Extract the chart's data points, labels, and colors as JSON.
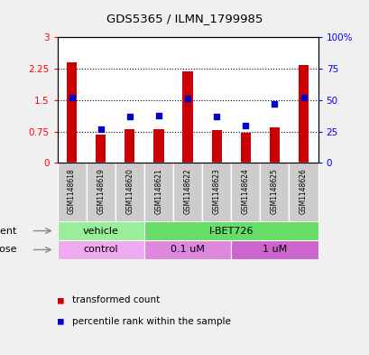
{
  "title": "GDS5365 / ILMN_1799985",
  "samples": [
    "GSM1148618",
    "GSM1148619",
    "GSM1148620",
    "GSM1148621",
    "GSM1148622",
    "GSM1148623",
    "GSM1148624",
    "GSM1148625",
    "GSM1148626"
  ],
  "red_values": [
    2.4,
    0.68,
    0.8,
    0.8,
    2.18,
    0.78,
    0.73,
    0.85,
    2.33
  ],
  "blue_values": [
    52,
    27,
    37,
    38,
    51,
    37,
    30,
    47,
    52
  ],
  "ylim_left": [
    0,
    3
  ],
  "ylim_right": [
    0,
    100
  ],
  "yticks_left": [
    0,
    0.75,
    1.5,
    2.25,
    3
  ],
  "yticks_right": [
    0,
    25,
    50,
    75,
    100
  ],
  "ytick_labels_left": [
    "0",
    "0.75",
    "1.5",
    "2.25",
    "3"
  ],
  "ytick_labels_right": [
    "0",
    "25",
    "50",
    "75",
    "100%"
  ],
  "hlines": [
    0.75,
    1.5,
    2.25
  ],
  "bar_color": "#cc0000",
  "dot_color": "#0000cc",
  "agent_labels": [
    {
      "text": "vehicle",
      "start": 0,
      "end": 3,
      "color": "#99ee99"
    },
    {
      "text": "I-BET726",
      "start": 3,
      "end": 9,
      "color": "#66dd66"
    }
  ],
  "dose_labels": [
    {
      "text": "control",
      "start": 0,
      "end": 3,
      "color": "#eeaaee"
    },
    {
      "text": "0.1 uM",
      "start": 3,
      "end": 6,
      "color": "#dd88dd"
    },
    {
      "text": "1 uM",
      "start": 6,
      "end": 9,
      "color": "#cc66cc"
    }
  ],
  "legend_red": "transformed count",
  "legend_blue": "percentile rank within the sample",
  "xlabel_agent": "agent",
  "xlabel_dose": "dose",
  "sample_bg": "#cccccc",
  "plot_bg": "#ffffff",
  "fig_bg": "#f0f0f0"
}
